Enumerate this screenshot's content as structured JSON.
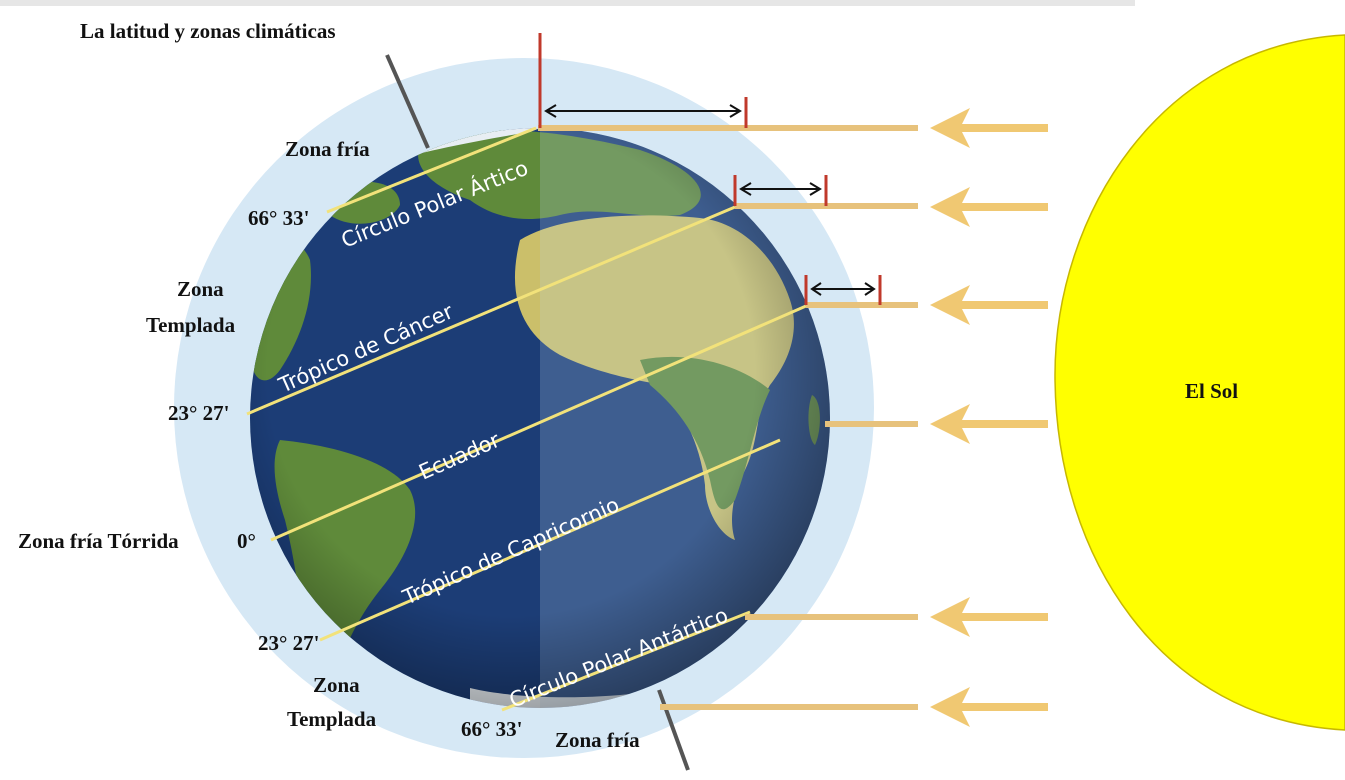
{
  "title": "La latitud y zonas climáticas",
  "sun": {
    "label": "El Sol",
    "color": "#ffff00",
    "outline": "#c7b800"
  },
  "colors": {
    "halo": "#d6e8f5",
    "ocean": "#1c3d76",
    "land": "#5f8a3a",
    "desert": "#cbbf6a",
    "ray": "#e7c27c",
    "arrow": "#f0c872",
    "latitude_line": "#f2e27a",
    "marker_red": "#c0392b",
    "measure_black": "#111111"
  },
  "circles": {
    "arctic": "Círculo Polar Ártico",
    "cancer": "Trópico de Cáncer",
    "equator": "Ecuador",
    "capricorn": "Trópico de Capricornio",
    "antarctic": "Círculo Polar Antártico"
  },
  "zones": {
    "north_cold": "Zona fría",
    "north_temperate_1": "Zona",
    "north_temperate_2": "Templada",
    "torrid": "Zona fría Tórrida",
    "south_temperate_1": "Zona",
    "south_temperate_2": "Templada",
    "south_cold": "Zona fría"
  },
  "latitudes": {
    "north_polar": "66° 33'",
    "north_tropic": "23° 27'",
    "equator": "0°",
    "south_tropic": "23° 27'",
    "south_polar": "66° 33'"
  }
}
